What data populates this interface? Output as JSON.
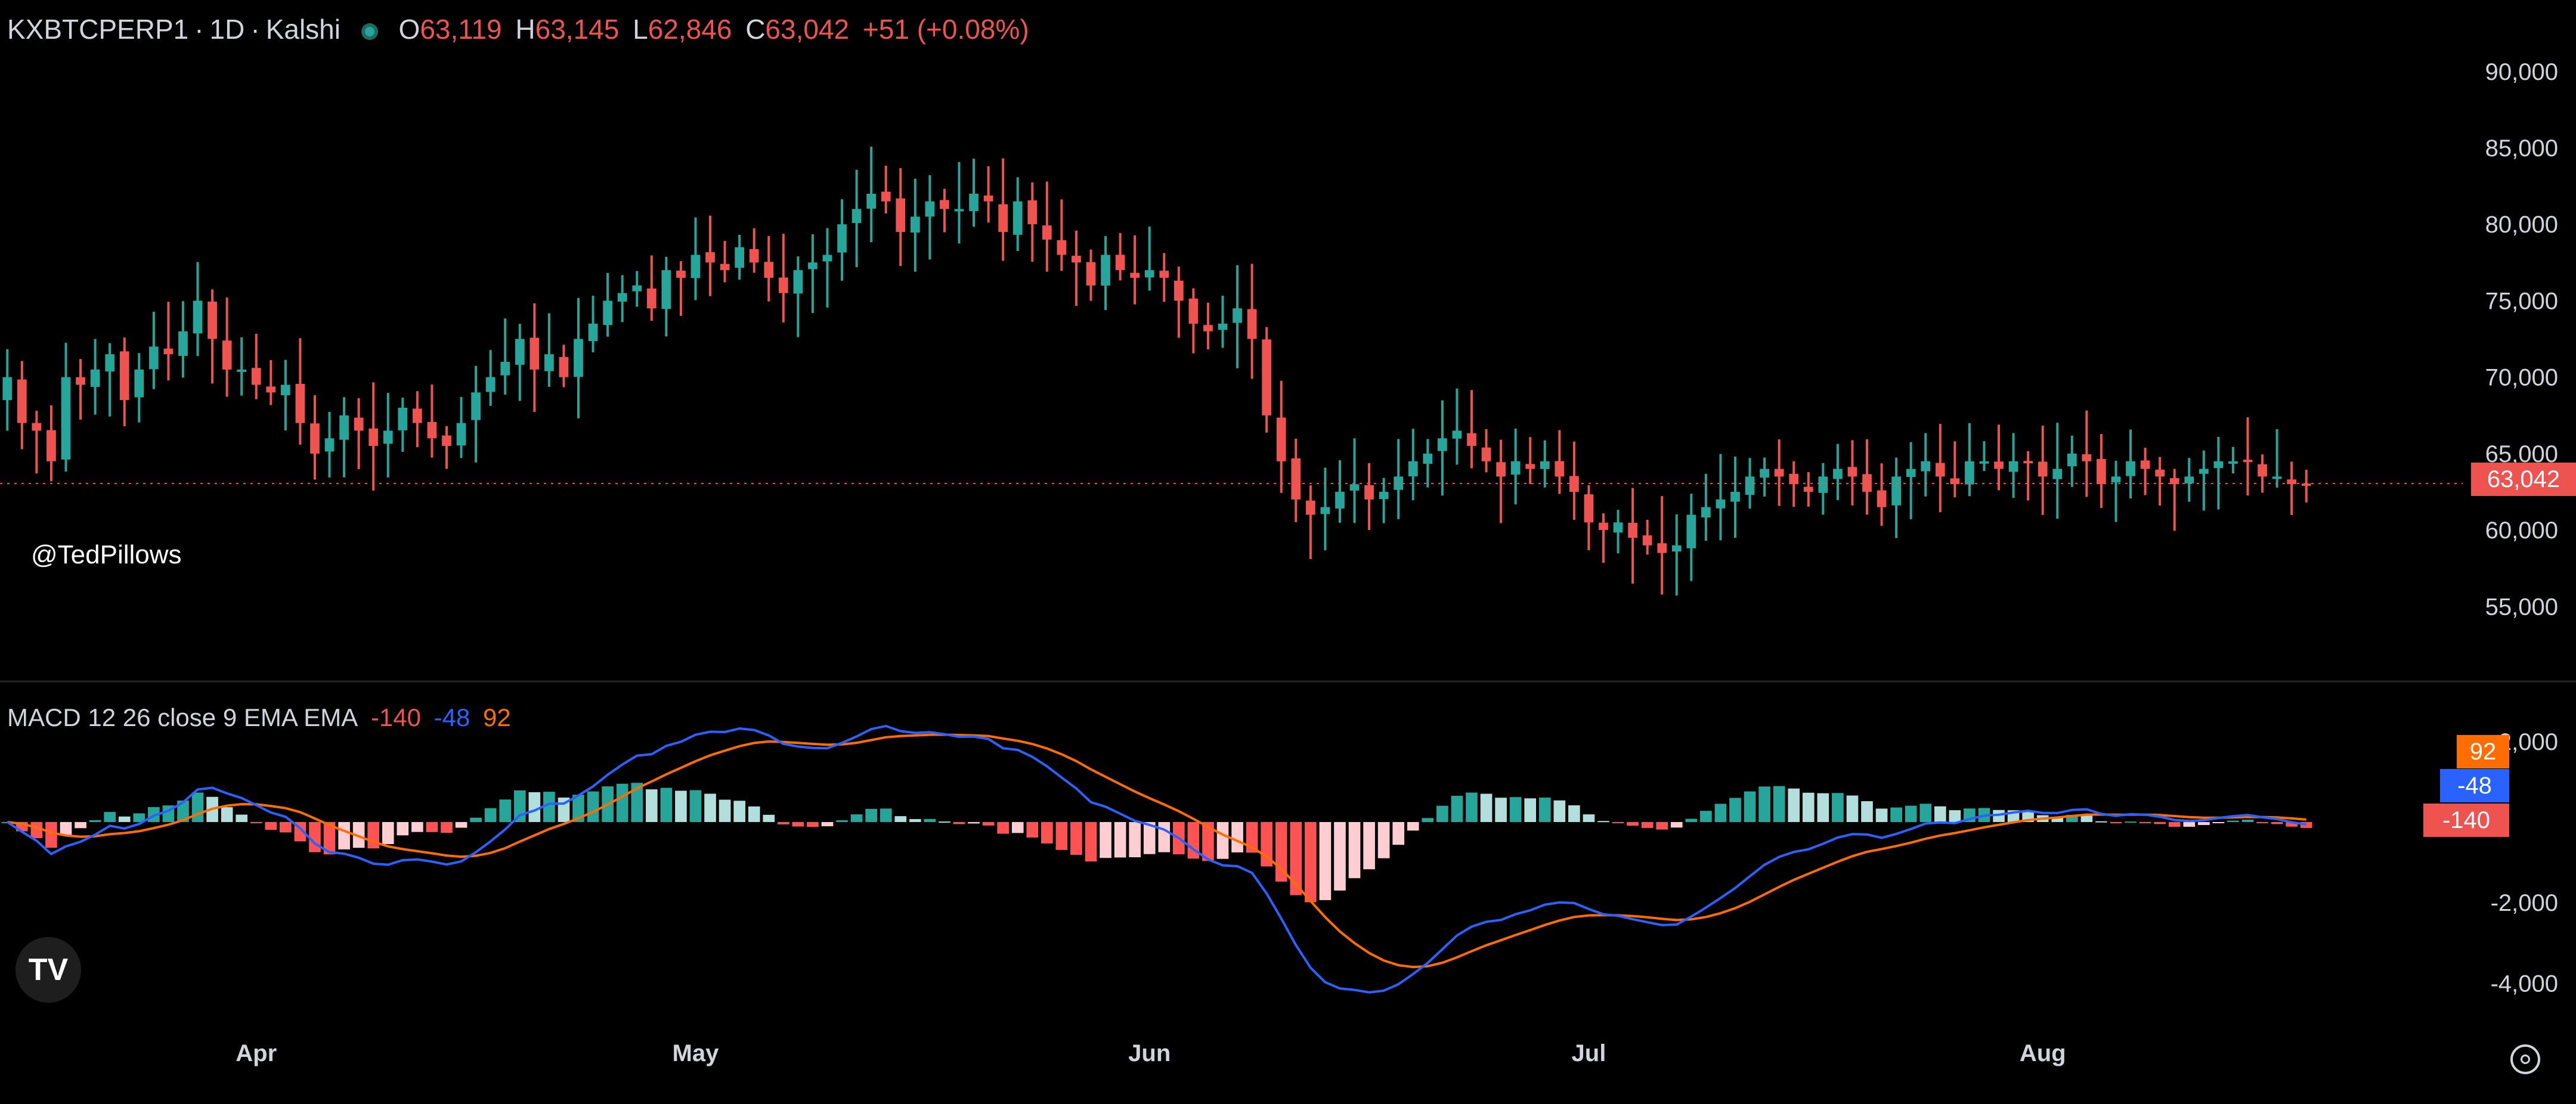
{
  "header": {
    "symbol": "KXBTCPERP1",
    "interval": "1D",
    "exchange": "Kalshi",
    "sep": "·",
    "o_label": "O",
    "o_value": "63,119",
    "h_label": "H",
    "h_value": "63,145",
    "l_label": "L",
    "l_value": "62,846",
    "c_label": "C",
    "c_value": "63,042",
    "change": "+51 (+0.08%)"
  },
  "watermark": "@TedPillows",
  "logo_text": "TV",
  "macd_header": {
    "label": "MACD 12 26 close 9 EMA EMA",
    "hist_value": "-140",
    "macd_value": "-48",
    "signal_value": "92"
  },
  "price_tag": "63,042",
  "macd_tags": {
    "signal": "92",
    "macd": "-48",
    "hist": "-140"
  },
  "colors": {
    "up": "#26a69a",
    "down": "#ef5350",
    "hist_up_strong": "#26a69a",
    "hist_up_weak": "#b2dfdb",
    "hist_down_strong": "#ff5252",
    "hist_down_weak": "#ffcdd2",
    "macd_line": "#2962ff",
    "signal_line": "#ff6d00"
  },
  "chart_data": [
    {
      "type": "candlestick",
      "title": "KXBTCPERP1 · 1D · Kalshi",
      "y_ticks": [
        "90,000",
        "85,000",
        "80,000",
        "75,000",
        "70,000",
        "65,000",
        "60,000",
        "55,000"
      ],
      "ylim": [
        51000,
        93500
      ],
      "x_ticks": [
        "Apr",
        "May",
        "Jun",
        "Jul",
        "Aug"
      ],
      "last_price": 63042,
      "closes": [
        70000,
        67000,
        66500,
        64500,
        70000,
        69500,
        70500,
        71500,
        68500,
        70500,
        72000,
        71500,
        73000,
        75000,
        72500,
        70500,
        70500,
        69500,
        69000,
        69500,
        67000,
        65000,
        66000,
        67500,
        66500,
        65500,
        66500,
        68000,
        67000,
        66000,
        65500,
        67000,
        69000,
        70000,
        71000,
        72500,
        70500,
        71500,
        70000,
        72500,
        73500,
        75000,
        75500,
        76000,
        74500,
        77000,
        76500,
        78000,
        77500,
        77000,
        78500,
        77500,
        76500,
        75500,
        77000,
        77500,
        78000,
        80000,
        81000,
        82000,
        81500,
        79500,
        80500,
        81500,
        81000,
        81000,
        82000,
        81500,
        79500,
        81500,
        80000,
        79000,
        78000,
        77500,
        76000,
        78000,
        77000,
        76500,
        77000,
        76500,
        75000,
        73500,
        73000,
        73500,
        74500,
        72500,
        67500,
        64500,
        62000,
        61000,
        61500,
        62500,
        63000,
        62000,
        62500,
        63500,
        64500,
        65000,
        66000,
        66500,
        65500,
        64500,
        63500,
        64500,
        64000,
        64500,
        63500,
        62500,
        60500,
        60000,
        60500,
        59500,
        59000,
        58500,
        59000,
        61000,
        61500,
        62000,
        62500,
        63500,
        64000,
        63500,
        63000,
        62500,
        63500,
        64000,
        63500,
        62500,
        61500,
        63500,
        64000,
        64500,
        63500,
        63000,
        64500,
        64500,
        64000,
        64500,
        64500,
        63500,
        64000,
        65000,
        64500,
        63000,
        63500,
        64500,
        64000,
        63500,
        63000,
        63500,
        64000,
        64500,
        64500,
        64500,
        63500,
        63500,
        63000,
        63042
      ]
    },
    {
      "type": "macd",
      "title": "MACD 12 26 close 9 EMA EMA",
      "y_ticks": [
        "2,000",
        "-2,000",
        "-4,000"
      ],
      "ylim": [
        -4600,
        2500
      ],
      "macd_last": -48,
      "signal_last": 92,
      "hist_last": -140
    }
  ]
}
